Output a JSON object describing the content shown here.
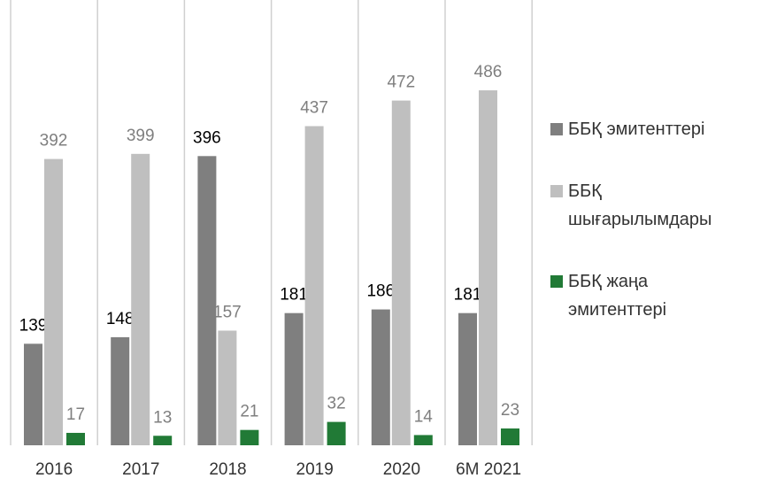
{
  "chart_data": {
    "type": "bar",
    "categories": [
      "2016",
      "2017",
      "2018",
      "2019",
      "2020",
      "6M 2021"
    ],
    "series": [
      {
        "name": "ББҚ эмитенттері",
        "color": "#7f7f7f",
        "label_color": "#000000",
        "values": [
          139,
          148,
          396,
          181,
          186,
          181
        ]
      },
      {
        "name": "ББҚ шығарылымдары",
        "color": "#bfbfbf",
        "label_color": "#7f7f7f",
        "values": [
          392,
          399,
          157,
          437,
          472,
          486
        ]
      },
      {
        "name": "ББҚ жаңа эмитенттері",
        "color": "#217a36",
        "label_color": "#7f7f7f",
        "values": [
          17,
          13,
          21,
          32,
          14,
          23
        ]
      }
    ],
    "ylim": [
      0,
      600
    ],
    "legend": "right"
  }
}
